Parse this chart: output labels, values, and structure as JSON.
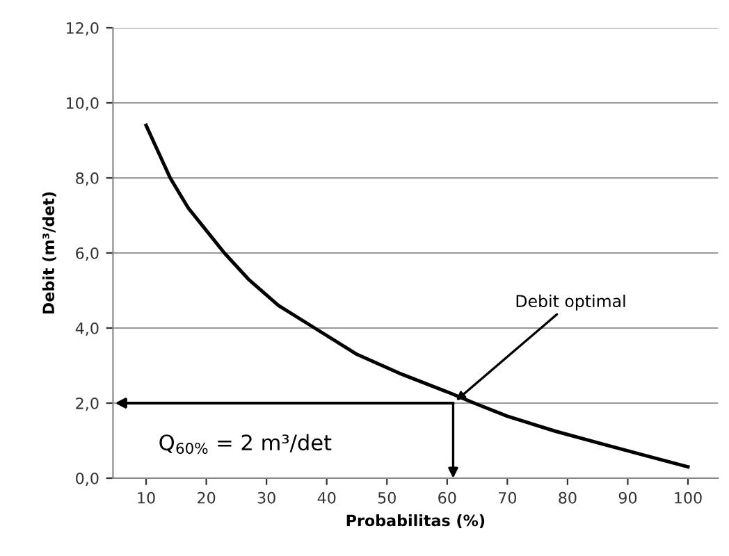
{
  "chart_data": {
    "type": "line",
    "xlabel": "Probabilitas (%)",
    "ylabel": "Debit (m³/det)",
    "x": [
      10,
      12,
      14,
      17,
      20,
      23,
      27,
      32,
      38,
      45,
      52,
      60,
      64.5,
      70,
      78,
      86,
      93,
      100
    ],
    "series": [
      {
        "color": "#000000",
        "values": [
          9.4,
          8.7,
          8.0,
          7.2,
          6.6,
          6.0,
          5.3,
          4.6,
          4.0,
          3.3,
          2.8,
          2.3,
          2.0,
          1.65,
          1.25,
          0.9,
          0.6,
          0.3
        ]
      }
    ],
    "xlim": [
      4.5,
      105
    ],
    "xticks": [
      10,
      20,
      30,
      40,
      50,
      60,
      70,
      80,
      90,
      100
    ],
    "ylim": [
      0,
      12
    ],
    "yticks": [
      {
        "value": 0,
        "label": "0,0"
      },
      {
        "value": 2,
        "label": "2,0"
      },
      {
        "value": 4,
        "label": "4,0"
      },
      {
        "value": 6,
        "label": "6,0"
      },
      {
        "value": 8,
        "label": "8,0"
      },
      {
        "value": 10,
        "label": "10,0"
      },
      {
        "value": 12,
        "label": "12,0"
      }
    ],
    "grid": "y",
    "legend": false,
    "marker": "none",
    "line_style": "solid",
    "annotations": [
      {
        "text": "Debit optimal",
        "x": 61,
        "y": 2
      },
      "Q$_{60%}$ = 2 m³/det"
    ]
  }
}
